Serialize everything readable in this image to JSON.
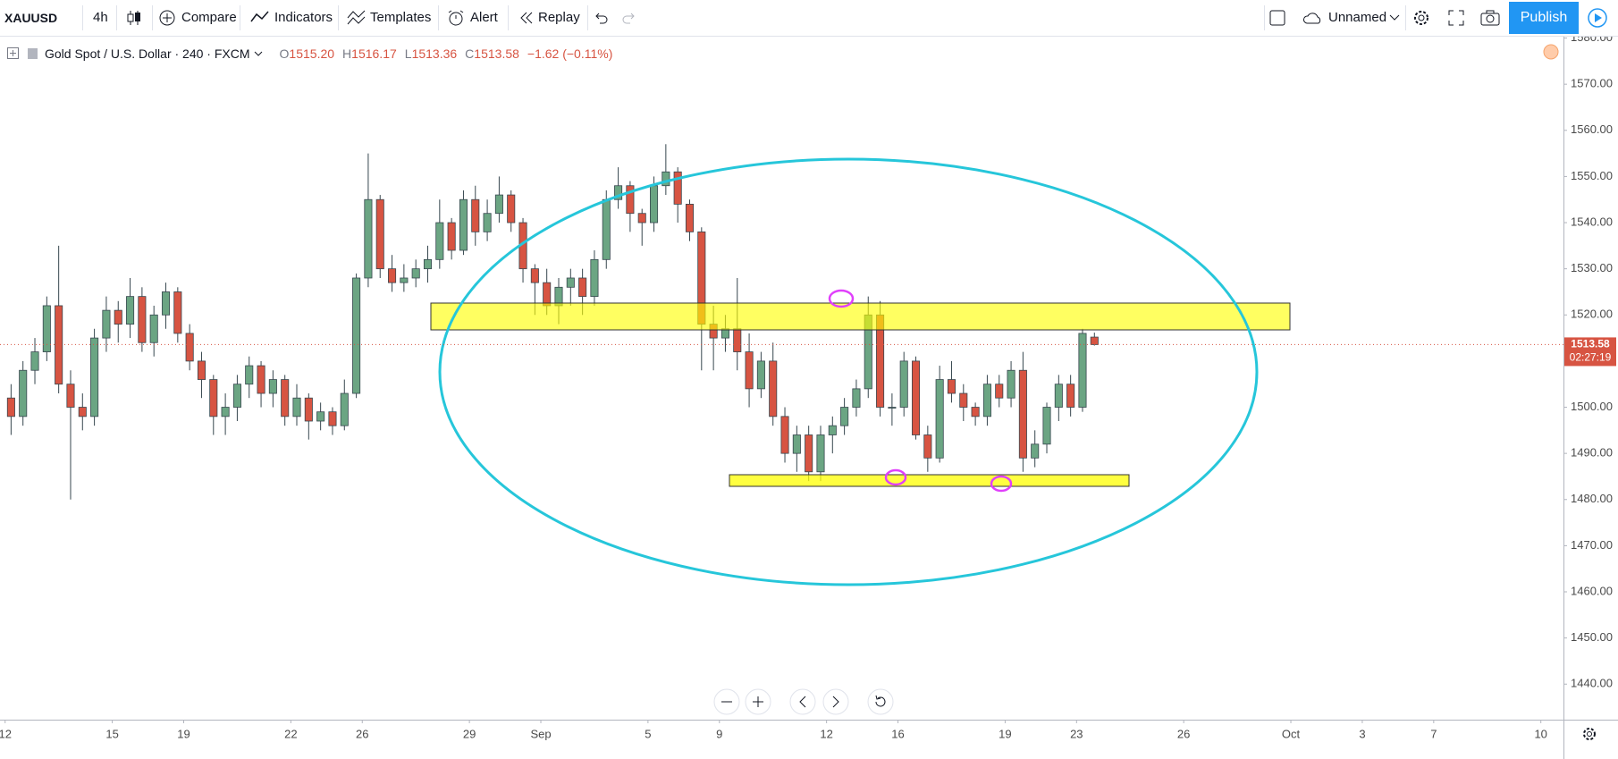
{
  "toolbar": {
    "symbol": "XAUUSD",
    "interval": "4h",
    "compare": "Compare",
    "indicators": "Indicators",
    "templates": "Templates",
    "alert": "Alert",
    "replay": "Replay",
    "layout_name": "Unnamed",
    "publish": "Publish"
  },
  "legend": {
    "instrument": "Gold Spot / U.S. Dollar · 240 · FXCM",
    "open_key": "O",
    "open": "1515.20",
    "high_key": "H",
    "high": "1516.17",
    "low_key": "L",
    "low": "1513.36",
    "close_key": "C",
    "close": "1513.58",
    "change": "−1.62 (−0.11%)"
  },
  "chart_data": {
    "type": "candlestick",
    "up_color": "#6ba583",
    "down_color": "#d75442",
    "wick_color": "#37474f",
    "grid": false,
    "xlim": [
      -0.43,
      130.9
    ],
    "ylim": [
      1432.3,
      1580.3
    ],
    "yticks": [
      {
        "value": 1440,
        "label": "1440.00"
      },
      {
        "value": 1450,
        "label": "1450.00"
      },
      {
        "value": 1460,
        "label": "1460.00"
      },
      {
        "value": 1470,
        "label": "1470.00"
      },
      {
        "value": 1480,
        "label": "1480.00"
      },
      {
        "value": 1490,
        "label": "1490.00"
      },
      {
        "value": 1500,
        "label": "1500.00"
      },
      {
        "value": 1510,
        "label": "1510.00"
      },
      {
        "value": 1520,
        "label": "1520.00"
      },
      {
        "value": 1530,
        "label": "1530.00"
      },
      {
        "value": 1540,
        "label": "1540.00"
      },
      {
        "value": 1550,
        "label": "1550.00"
      },
      {
        "value": 1560,
        "label": "1560.00"
      },
      {
        "value": 1570,
        "label": "1570.00"
      },
      {
        "value": 1580,
        "label": "1580.00"
      }
    ],
    "xticks": [
      {
        "value": 0,
        "label": "12"
      },
      {
        "value": 9,
        "label": "15"
      },
      {
        "value": 15,
        "label": "19"
      },
      {
        "value": 24,
        "label": "22"
      },
      {
        "value": 30,
        "label": "26"
      },
      {
        "value": 39,
        "label": "29"
      },
      {
        "value": 45,
        "label": "Sep"
      },
      {
        "value": 54,
        "label": "5"
      },
      {
        "value": 60,
        "label": "9"
      },
      {
        "value": 69,
        "label": "12"
      },
      {
        "value": 75,
        "label": "16"
      },
      {
        "value": 84,
        "label": "19"
      },
      {
        "value": 90,
        "label": "23"
      },
      {
        "value": 99,
        "label": "26"
      },
      {
        "value": 108,
        "label": "Oct"
      },
      {
        "value": 114,
        "label": "3"
      },
      {
        "value": 120,
        "label": "7"
      },
      {
        "value": 129,
        "label": "10"
      }
    ],
    "last_price": {
      "value": 1513.58,
      "label": "1513.58"
    },
    "countdown": "02:27:19",
    "values": [
      [
        1502,
        1505,
        1494,
        1498
      ],
      [
        1498,
        1510,
        1496,
        1508
      ],
      [
        1508,
        1515,
        1505,
        1512
      ],
      [
        1512,
        1524,
        1510,
        1522
      ],
      [
        1522,
        1535,
        1503,
        1505
      ],
      [
        1505,
        1508,
        1480,
        1500
      ],
      [
        1500,
        1503,
        1495,
        1498
      ],
      [
        1498,
        1517,
        1496,
        1515
      ],
      [
        1515,
        1524,
        1512,
        1521
      ],
      [
        1521,
        1523,
        1514,
        1518
      ],
      [
        1518,
        1528,
        1515,
        1524
      ],
      [
        1524,
        1526,
        1512,
        1514
      ],
      [
        1514,
        1522,
        1511,
        1520
      ],
      [
        1520,
        1527,
        1517,
        1525
      ],
      [
        1525,
        1526,
        1514,
        1516
      ],
      [
        1516,
        1518,
        1508,
        1510
      ],
      [
        1510,
        1512,
        1502,
        1506
      ],
      [
        1506,
        1507,
        1494,
        1498
      ],
      [
        1498,
        1503,
        1494,
        1500
      ],
      [
        1500,
        1507,
        1497,
        1505
      ],
      [
        1505,
        1511,
        1502,
        1509
      ],
      [
        1509,
        1510,
        1500,
        1503
      ],
      [
        1503,
        1508,
        1500,
        1506
      ],
      [
        1506,
        1507,
        1496,
        1498
      ],
      [
        1498,
        1505,
        1496,
        1502
      ],
      [
        1502,
        1503,
        1493,
        1497
      ],
      [
        1497,
        1501,
        1495,
        1499
      ],
      [
        1499,
        1500,
        1494,
        1496
      ],
      [
        1496,
        1506,
        1495,
        1503
      ],
      [
        1503,
        1529,
        1502,
        1528
      ],
      [
        1528,
        1555,
        1526,
        1545
      ],
      [
        1545,
        1546,
        1528,
        1530
      ],
      [
        1530,
        1533,
        1525,
        1527
      ],
      [
        1527,
        1531,
        1525,
        1528
      ],
      [
        1528,
        1532,
        1526,
        1530
      ],
      [
        1530,
        1535,
        1527,
        1532
      ],
      [
        1532,
        1545,
        1530,
        1540
      ],
      [
        1540,
        1541,
        1532,
        1534
      ],
      [
        1534,
        1547,
        1533,
        1545
      ],
      [
        1545,
        1548,
        1535,
        1538
      ],
      [
        1538,
        1545,
        1536,
        1542
      ],
      [
        1542,
        1550,
        1540,
        1546
      ],
      [
        1546,
        1547,
        1538,
        1540
      ],
      [
        1540,
        1541,
        1527,
        1530
      ],
      [
        1530,
        1531,
        1520,
        1527
      ],
      [
        1527,
        1530,
        1520,
        1522
      ],
      [
        1522,
        1528,
        1518,
        1526
      ],
      [
        1526,
        1530,
        1522,
        1528
      ],
      [
        1528,
        1530,
        1520,
        1524
      ],
      [
        1524,
        1534,
        1522,
        1532
      ],
      [
        1532,
        1547,
        1530,
        1545
      ],
      [
        1545,
        1552,
        1543,
        1548
      ],
      [
        1548,
        1549,
        1538,
        1542
      ],
      [
        1542,
        1543,
        1535,
        1540
      ],
      [
        1540,
        1550,
        1538,
        1548
      ],
      [
        1548,
        1557,
        1546,
        1551
      ],
      [
        1551,
        1552,
        1540,
        1544
      ],
      [
        1544,
        1545,
        1536,
        1538
      ],
      [
        1538,
        1539,
        1508,
        1518
      ],
      [
        1518,
        1522,
        1508,
        1515
      ],
      [
        1515,
        1520,
        1512,
        1517
      ],
      [
        1517,
        1528,
        1508,
        1512
      ],
      [
        1512,
        1516,
        1500,
        1504
      ],
      [
        1504,
        1512,
        1502,
        1510
      ],
      [
        1510,
        1514,
        1496,
        1498
      ],
      [
        1498,
        1500,
        1488,
        1490
      ],
      [
        1490,
        1496,
        1486,
        1494
      ],
      [
        1494,
        1496,
        1484,
        1486
      ],
      [
        1486,
        1496,
        1484,
        1494
      ],
      [
        1494,
        1498,
        1490,
        1496
      ],
      [
        1496,
        1502,
        1494,
        1500
      ],
      [
        1500,
        1506,
        1498,
        1504
      ],
      [
        1504,
        1524,
        1502,
        1520
      ],
      [
        1520,
        1523,
        1498,
        1500
      ],
      [
        1500,
        1503,
        1496,
        1500
      ],
      [
        1500,
        1512,
        1498,
        1510
      ],
      [
        1510,
        1511,
        1493,
        1494
      ],
      [
        1494,
        1496,
        1486,
        1489
      ],
      [
        1489,
        1509,
        1488,
        1506
      ],
      [
        1506,
        1510,
        1501,
        1503
      ],
      [
        1503,
        1505,
        1497,
        1500
      ],
      [
        1500,
        1501,
        1496,
        1498
      ],
      [
        1498,
        1507,
        1496,
        1505
      ],
      [
        1505,
        1507,
        1500,
        1502
      ],
      [
        1502,
        1510,
        1500,
        1508
      ],
      [
        1508,
        1512,
        1486,
        1489
      ],
      [
        1489,
        1495,
        1487,
        1492
      ],
      [
        1492,
        1501,
        1490,
        1500
      ],
      [
        1500,
        1507,
        1497,
        1505
      ],
      [
        1505,
        1507,
        1498,
        1500
      ],
      [
        1500,
        1517,
        1499,
        1516
      ],
      [
        1515.2,
        1516.17,
        1513.36,
        1513.58
      ]
    ]
  }
}
